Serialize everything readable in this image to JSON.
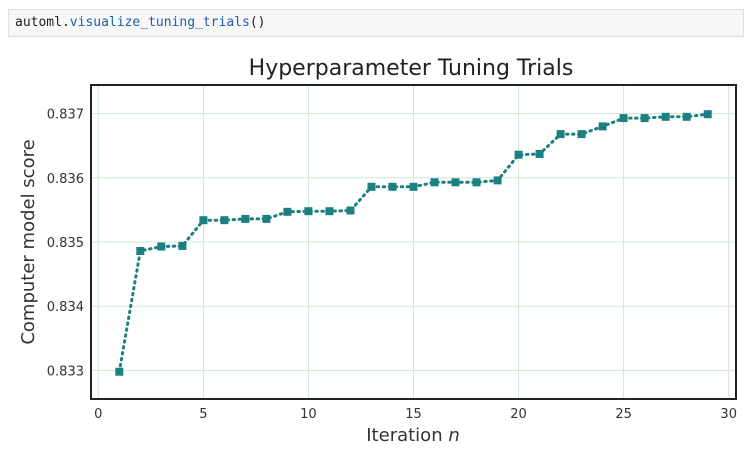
{
  "cell": {
    "obj": "automl.",
    "fn": "visualize_tuning_trials",
    "paren": "()"
  },
  "chart_data": {
    "type": "line",
    "title": "Hyperparameter Tuning Trials",
    "xlabel_text": "Iteration ",
    "xlabel_var": "n",
    "ylabel": "Computer model score",
    "xlim": [
      -0.3,
      30.3
    ],
    "ylim": [
      0.83257,
      0.83743
    ],
    "xticks": [
      0,
      5,
      10,
      15,
      20,
      25,
      30
    ],
    "yticks": [
      0.833,
      0.834,
      0.835,
      0.836,
      0.837
    ],
    "ytick_labels": [
      "0.833",
      "0.834",
      "0.835",
      "0.836",
      "0.837"
    ],
    "grid": true,
    "line_style": "dotted",
    "marker": "square",
    "color": "#1a8080",
    "grid_color": "#cfe8d4",
    "series": [
      {
        "x": [
          1,
          2,
          3,
          4,
          5,
          6,
          7,
          8,
          9,
          10,
          11,
          12,
          13,
          14,
          15,
          16,
          17,
          18,
          19,
          20,
          21,
          22,
          23,
          24,
          25,
          26,
          27,
          28,
          29
        ],
        "y": [
          0.83298,
          0.83486,
          0.83493,
          0.83494,
          0.83534,
          0.83534,
          0.83536,
          0.83536,
          0.83547,
          0.83548,
          0.83548,
          0.83549,
          0.83586,
          0.83586,
          0.83586,
          0.83593,
          0.83593,
          0.83593,
          0.83596,
          0.83636,
          0.83637,
          0.83668,
          0.83668,
          0.8368,
          0.83693,
          0.83693,
          0.83695,
          0.83695,
          0.83699
        ]
      }
    ]
  }
}
